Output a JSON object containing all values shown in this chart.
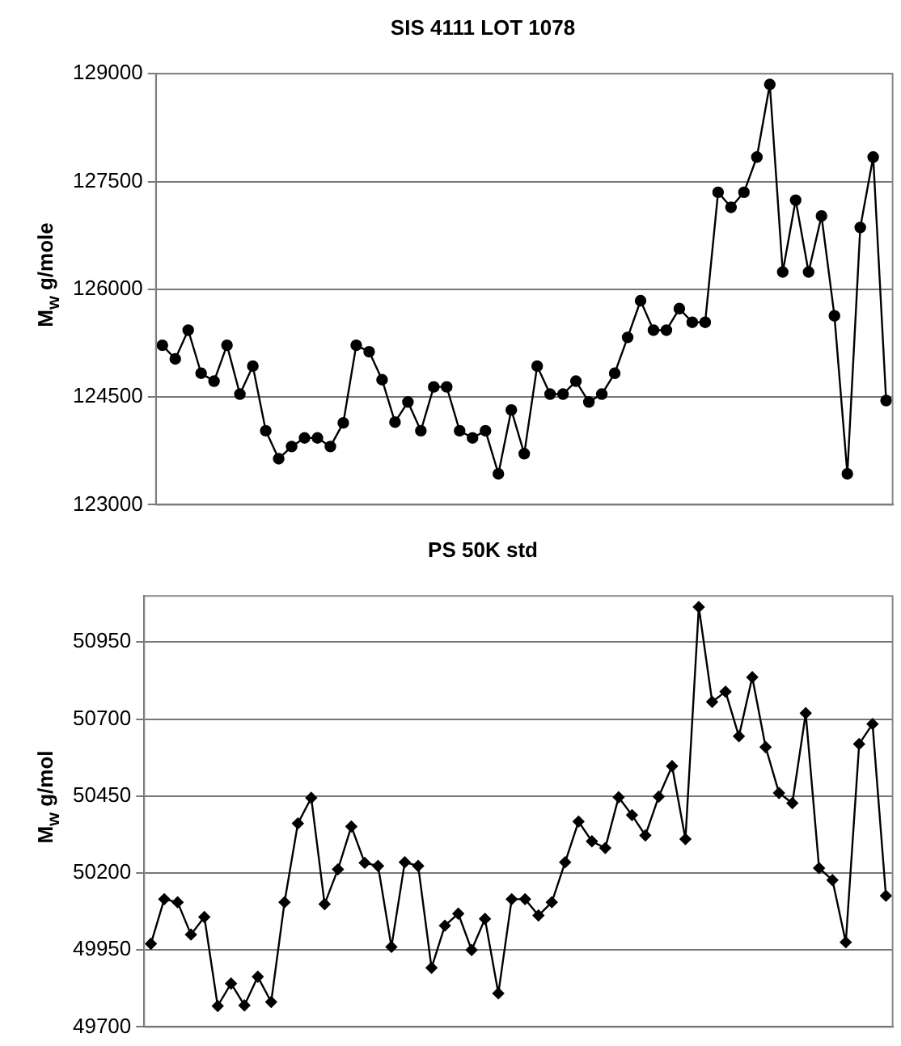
{
  "chart_data": [
    {
      "type": "line",
      "title": "SIS 4111 LOT 1078",
      "ylabel": "M$_{w}$ g/mole",
      "categories": [
        null,
        null,
        null,
        null,
        null,
        null,
        null,
        null,
        null,
        null,
        null,
        null,
        null,
        null,
        null,
        null,
        null,
        null,
        null,
        null,
        null,
        null,
        null,
        null,
        null,
        null,
        null,
        null,
        null,
        null,
        null,
        null,
        null,
        null,
        null,
        null,
        null,
        null,
        null,
        null,
        null,
        null,
        null,
        null,
        null,
        null,
        null,
        null,
        null,
        null,
        null,
        null,
        null,
        null,
        null,
        null,
        null
      ],
      "series": [
        {
          "color": "#000000",
          "values": [
            125220,
            125030,
            125430,
            124830,
            124720,
            125220,
            124540,
            124930,
            124030,
            123640,
            123810,
            123930,
            123930,
            123810,
            124140,
            125220,
            125130,
            124740,
            124150,
            124430,
            124030,
            124640,
            124640,
            124030,
            123930,
            124030,
            123430,
            124320,
            123710,
            124930,
            124540,
            124540,
            124720,
            124430,
            124540,
            124830,
            125330,
            125840,
            125430,
            125430,
            125730,
            125540,
            125540,
            127350,
            127140,
            127350,
            127840,
            128850,
            126240,
            127240,
            126240,
            127020,
            125630,
            123430,
            126860,
            127840,
            124450
          ]
        }
      ],
      "ylim": [
        123000,
        129000
      ],
      "yticks": [
        123000,
        124500,
        126000,
        127500,
        129000
      ],
      "grid": "y",
      "legend": false,
      "tick_labels": "y",
      "marker": "circle",
      "line_style": "solid"
    },
    {
      "type": "line",
      "title": "PS 50K std",
      "ylabel": "M$_{w}$ g/mol",
      "categories": [
        null,
        null,
        null,
        null,
        null,
        null,
        null,
        null,
        null,
        null,
        null,
        null,
        null,
        null,
        null,
        null,
        null,
        null,
        null,
        null,
        null,
        null,
        null,
        null,
        null,
        null,
        null,
        null,
        null,
        null,
        null,
        null,
        null,
        null,
        null,
        null,
        null,
        null,
        null,
        null,
        null,
        null,
        null,
        null,
        null,
        null,
        null,
        null,
        null,
        null,
        null,
        null,
        null,
        null,
        null,
        null
      ],
      "series": [
        {
          "color": "#000000",
          "values": [
            49970,
            50115,
            50105,
            50000,
            50057,
            49768,
            49841,
            49770,
            49863,
            49781,
            50105,
            50361,
            50444,
            50099,
            50212,
            50351,
            50233,
            50223,
            49960,
            50235,
            50223,
            49892,
            50029,
            50068,
            49950,
            50051,
            49809,
            50115,
            50115,
            50062,
            50105,
            50235,
            50367,
            50303,
            50281,
            50446,
            50388,
            50322,
            50448,
            50547,
            50310,
            51064,
            50756,
            50789,
            50644,
            50836,
            50609,
            50460,
            50427,
            50719,
            50216,
            50177,
            49975,
            50619,
            50684,
            50126
          ]
        }
      ],
      "ylim": [
        49700,
        51100
      ],
      "yticks": [
        49700,
        49950,
        50200,
        50450,
        50700,
        50950
      ],
      "grid": "y",
      "legend": false,
      "tick_labels": "y",
      "marker": "diamond",
      "line_style": "solid"
    }
  ]
}
